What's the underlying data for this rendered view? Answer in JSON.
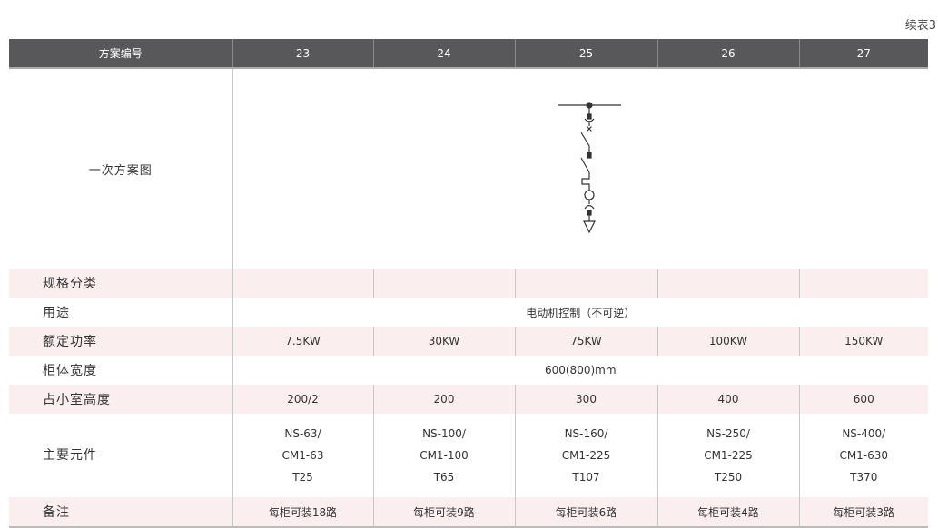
{
  "caption": "续表3",
  "header": {
    "label": "方案编号",
    "schemes": [
      "23",
      "24",
      "25",
      "26",
      "27"
    ]
  },
  "diagram_row": {
    "label": "一次方案图",
    "diagram_scheme": "25"
  },
  "rows": {
    "spec": {
      "label": "规格分类",
      "values": [
        "",
        "",
        "",
        "",
        ""
      ]
    },
    "usage": {
      "label": "用途",
      "value": "电动机控制（不可逆）"
    },
    "power": {
      "label": "额定功率",
      "values": [
        "7.5KW",
        "30KW",
        "75KW",
        "100KW",
        "150KW"
      ]
    },
    "width": {
      "label": "柜体宽度",
      "value": "600(800)mm"
    },
    "height": {
      "label": "占小室高度",
      "values": [
        "200/2",
        "200",
        "300",
        "400",
        "600"
      ]
    },
    "components": {
      "label": "主要元件",
      "values": [
        [
          "NS-63/",
          "CM1-63",
          "T25"
        ],
        [
          "NS-100/",
          "CM1-100",
          "T65"
        ],
        [
          "NS-160/",
          "CM1-225",
          "T107"
        ],
        [
          "NS-250/",
          "CM1-225",
          "T250"
        ],
        [
          "NS-400/",
          "CM1-630",
          "T370"
        ]
      ]
    },
    "remarks": {
      "label": "备注",
      "values": [
        "每柜可装18路",
        "每柜可装9路",
        "每柜可装6路",
        "每柜可装4路",
        "每柜可装3路"
      ]
    }
  },
  "colors": {
    "header_bg": "#58585a",
    "stripe": "#fbeeee"
  }
}
